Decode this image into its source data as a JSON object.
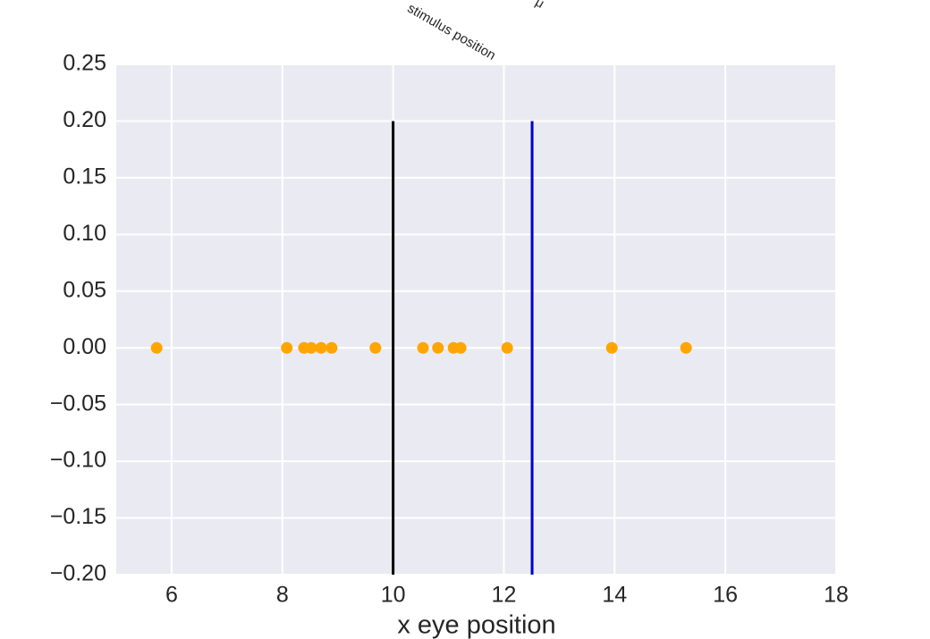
{
  "chart_data": {
    "type": "scatter",
    "xlabel": "x eye position",
    "x": [
      5.73,
      8.08,
      8.39,
      8.52,
      8.7,
      8.89,
      9.68,
      10.54,
      10.81,
      11.09,
      11.22,
      12.06,
      13.95,
      15.29
    ],
    "values": [
      0,
      0,
      0,
      0,
      0,
      0,
      0,
      0,
      0,
      0,
      0,
      0,
      0,
      0
    ],
    "color": "#ffa500",
    "vlines": [
      {
        "label": "stimulus position",
        "x": 10,
        "ymin": -0.2,
        "ymax": 0.2,
        "color": "#000000"
      },
      {
        "label": "μ",
        "x": 12.51,
        "ymin": -0.2,
        "ymax": 0.2,
        "color": "#0000cc"
      }
    ],
    "xlim": [
      5,
      18
    ],
    "xticks": [
      6,
      8,
      10,
      12,
      14,
      16,
      18
    ],
    "ylim": [
      -0.2,
      0.25
    ],
    "yticks": [
      {
        "value": -0.2,
        "label": "−0.20"
      },
      {
        "value": -0.15,
        "label": "−0.15"
      },
      {
        "value": -0.1,
        "label": "−0.10"
      },
      {
        "value": -0.05,
        "label": "−0.05"
      },
      {
        "value": 0,
        "label": "0.00"
      },
      0.05,
      {
        "value": 0.1,
        "label": "0.10"
      },
      0.15,
      {
        "value": 0.2,
        "label": "0.20"
      },
      0.25
    ],
    "grid": true
  }
}
